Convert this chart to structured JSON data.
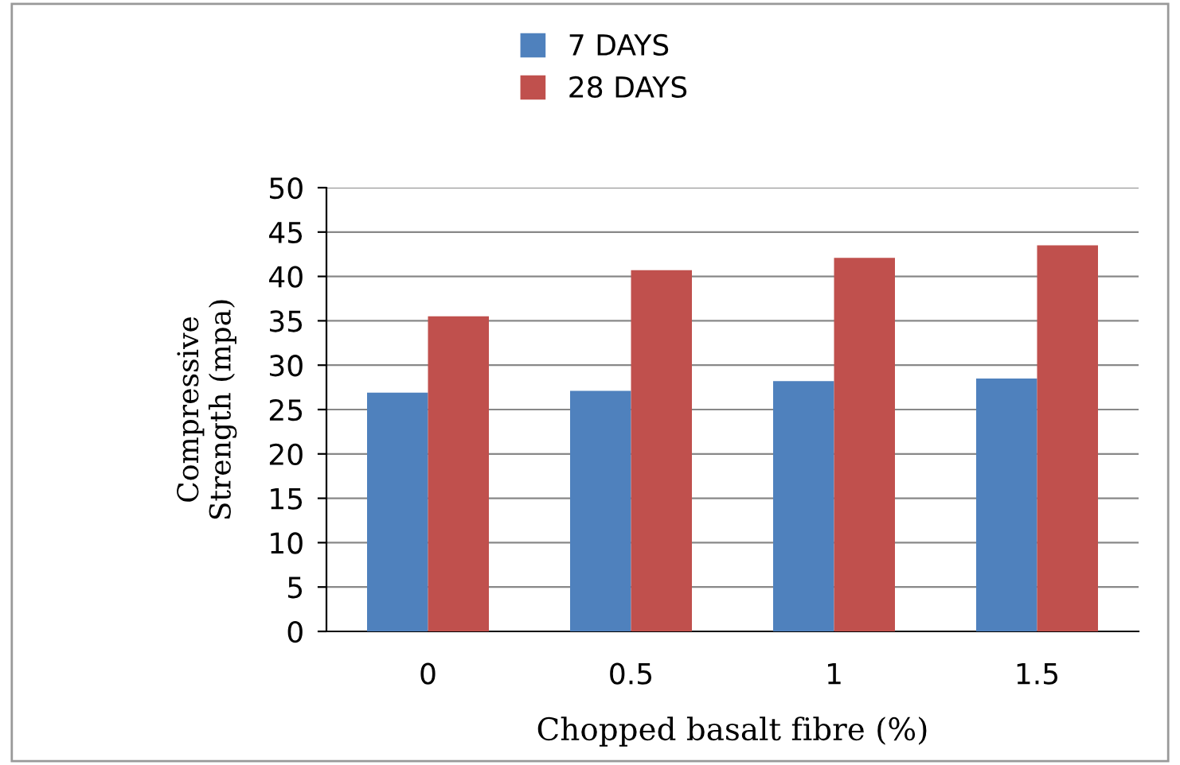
{
  "chart_data": {
    "type": "bar",
    "xlabel": "Chopped basalt fibre (%)",
    "ylabel": "Compressive\nStrength (mpa)",
    "categories": [
      "0",
      "0.5",
      "1",
      "1.5"
    ],
    "series": [
      {
        "name": "7 DAYS",
        "color": "#4f81bd",
        "values": [
          26.9,
          27.1,
          28.2,
          28.5
        ]
      },
      {
        "name": "28 DAYS",
        "color": "#c0504d",
        "values": [
          35.5,
          40.7,
          42.1,
          43.5
        ]
      }
    ],
    "ylim": [
      0,
      50
    ],
    "yticks": [
      0,
      5,
      10,
      15,
      20,
      25,
      30,
      35,
      40,
      45,
      50
    ],
    "grid": "y",
    "legend": "top"
  }
}
